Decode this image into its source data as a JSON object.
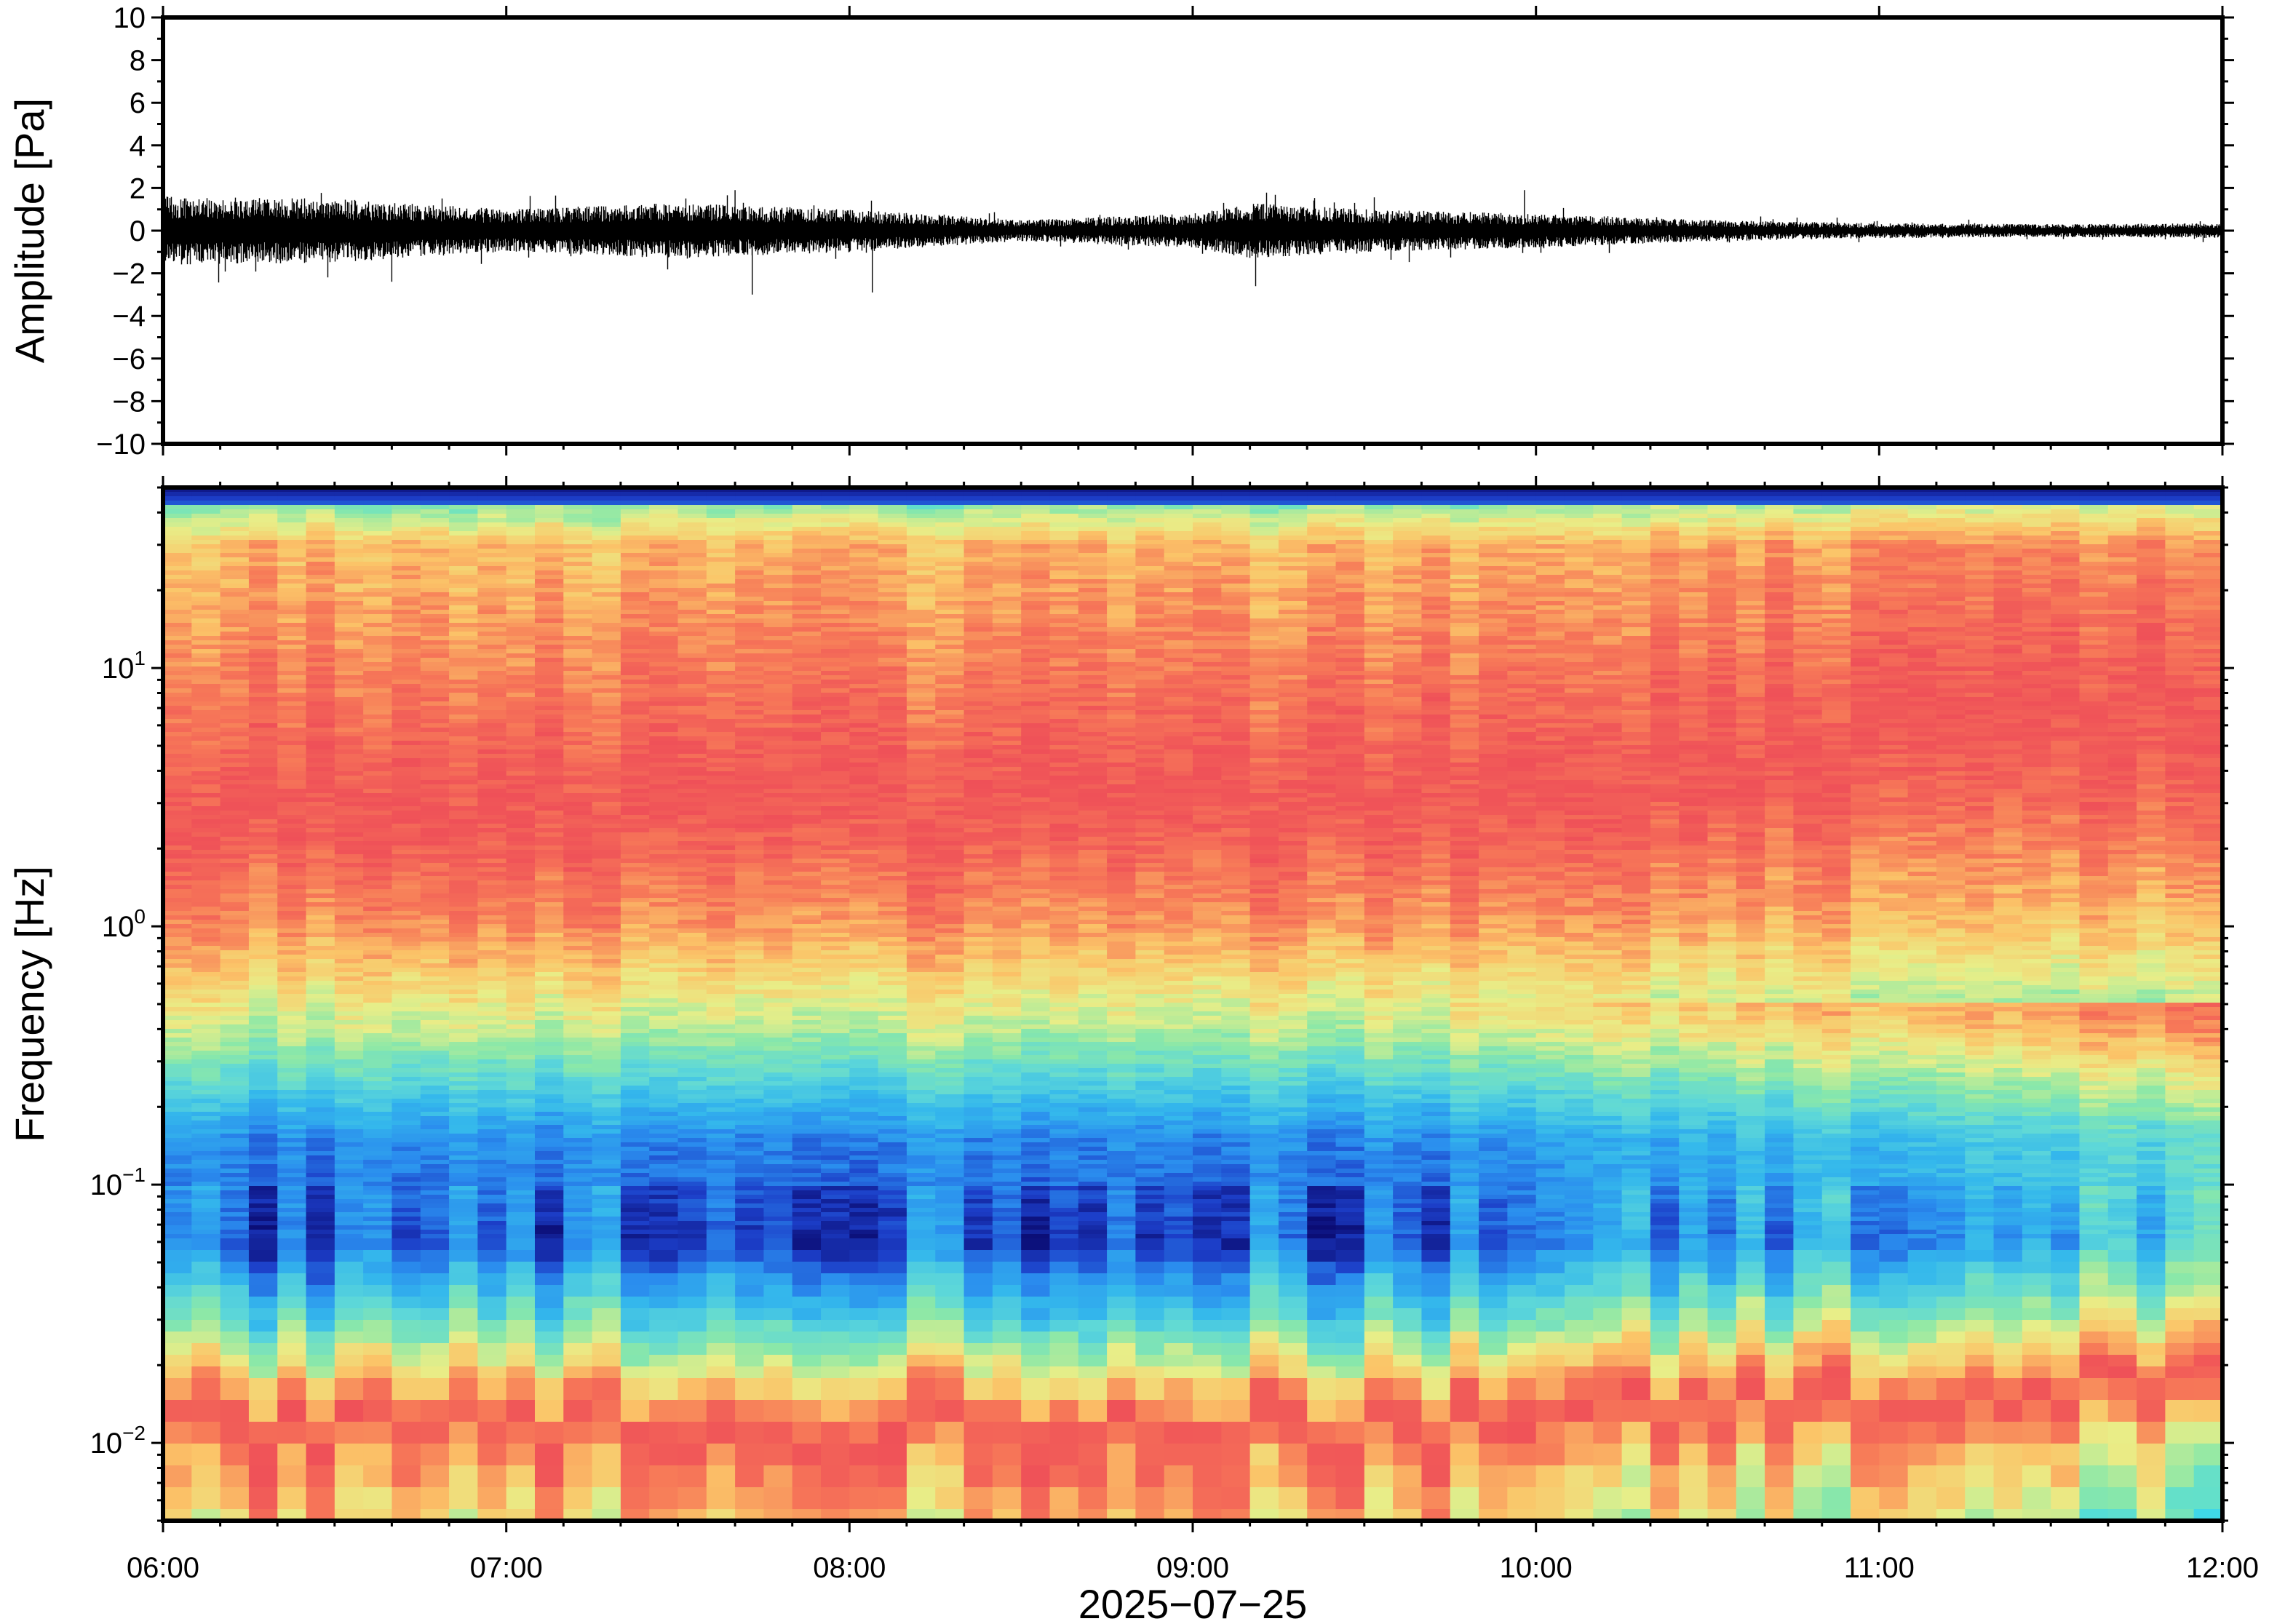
{
  "chart_data": [
    {
      "type": "line",
      "panel": "waveform",
      "ylabel": "Amplitude [Pa]",
      "ylim": [
        -10,
        10
      ],
      "yticks": [
        10,
        8,
        6,
        4,
        2,
        0,
        -2,
        -4,
        -6,
        -8,
        -10
      ],
      "ytick_labels": [
        "10",
        "8",
        "6",
        "4",
        "2",
        "0",
        "−2",
        "−4",
        "−6",
        "−8",
        "−10"
      ],
      "xlim": [
        "06:00",
        "12:00"
      ],
      "line_color": "#000000",
      "envelope": [
        {
          "time": "06:00",
          "amplitude": 1.6
        },
        {
          "time": "06:30",
          "amplitude": 1.5
        },
        {
          "time": "07:00",
          "amplitude": 1.0
        },
        {
          "time": "07:30",
          "amplitude": 1.3
        },
        {
          "time": "08:00",
          "amplitude": 1.0
        },
        {
          "time": "08:30",
          "amplitude": 0.5
        },
        {
          "time": "09:00",
          "amplitude": 0.8
        },
        {
          "time": "09:10",
          "amplitude": 1.3
        },
        {
          "time": "09:30",
          "amplitude": 1.0
        },
        {
          "time": "10:00",
          "amplitude": 0.8
        },
        {
          "time": "10:30",
          "amplitude": 0.5
        },
        {
          "time": "11:00",
          "amplitude": 0.35
        },
        {
          "time": "11:30",
          "amplitude": 0.3
        },
        {
          "time": "12:00",
          "amplitude": 0.35
        }
      ],
      "peaks": [
        {
          "time": "06:40",
          "amplitude": -2.4
        },
        {
          "time": "07:43",
          "amplitude": -3.0
        },
        {
          "time": "08:04",
          "amplitude": -2.9
        },
        {
          "time": "09:11",
          "amplitude": -2.6
        },
        {
          "time": "07:40",
          "amplitude": 1.9
        },
        {
          "time": "09:58",
          "amplitude": 1.9
        }
      ]
    },
    {
      "type": "heatmap",
      "panel": "spectrogram",
      "ylabel": "Frequency [Hz]",
      "yscale": "log",
      "ylim": [
        0.005,
        50
      ],
      "yticks": [
        {
          "value": 10,
          "base": "10",
          "exp": "1"
        },
        {
          "value": 1,
          "base": "10",
          "exp": "0"
        },
        {
          "value": 0.1,
          "base": "10",
          "exp": "−1"
        },
        {
          "value": 0.01,
          "base": "10",
          "exp": "−2"
        }
      ],
      "xlabel": "2025−07−25",
      "xticks": [
        "06:00",
        "07:00",
        "08:00",
        "09:00",
        "10:00",
        "11:00",
        "12:00"
      ],
      "xlim": [
        "06:00",
        "12:00"
      ],
      "colormap": [
        "#3fd8e8",
        "#8be8a8",
        "#e8ee88",
        "#fbc468",
        "#f77a58",
        "#ef5058",
        "#f77a58",
        "#fbc468",
        "#e8ee88",
        "#8be8a8",
        "#5ed8d8",
        "#34b8ec",
        "#2a8cee",
        "#1c3ec8",
        "#0a0a70"
      ],
      "levels": [
        {
          "frequency": 0.005,
          "level": 0.2
        },
        {
          "frequency": 0.01,
          "level": 0.3
        },
        {
          "frequency": 0.03,
          "level": 0.7
        },
        {
          "frequency": 0.06,
          "level": 0.9
        },
        {
          "frequency": 0.15,
          "level": 0.85
        },
        {
          "frequency": 0.4,
          "level": 0.6
        },
        {
          "frequency": 1,
          "level": 0.45
        },
        {
          "frequency": 3,
          "level": 0.35
        },
        {
          "frequency": 10,
          "level": 0.28
        },
        {
          "frequency": 30,
          "level": 0.22
        },
        {
          "frequency": 50,
          "level": 0.0
        }
      ]
    }
  ]
}
